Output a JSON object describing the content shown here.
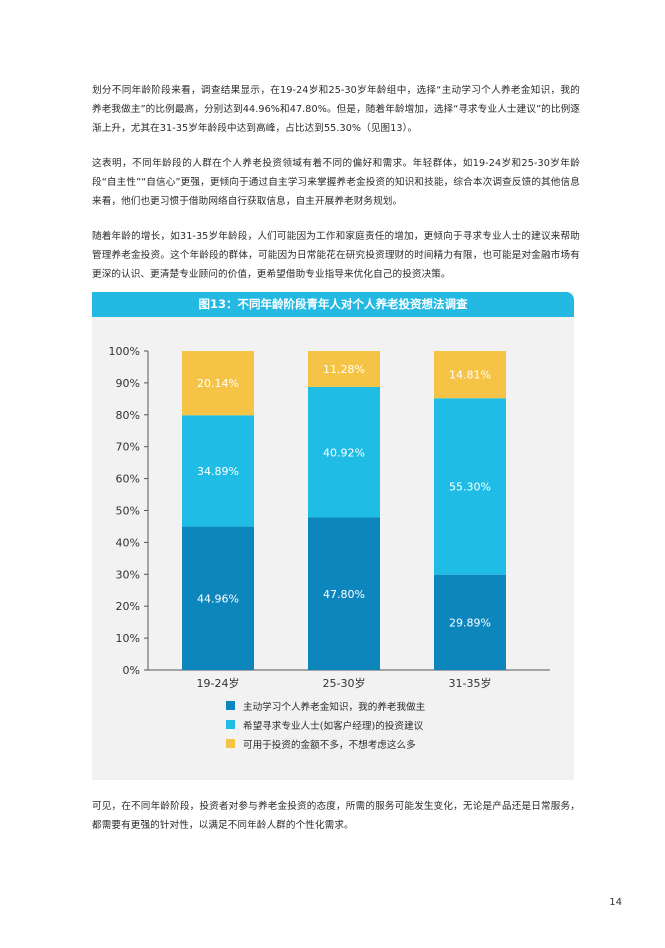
{
  "paragraphs": {
    "p1": "划分不同年龄阶段来看，调查结果显示，在19-24岁和25-30岁年龄组中，选择“主动学习个人养老金知识，我的养老我做主”的比例最高，分别达到44.96%和47.80%。但是，随着年龄增加，选择“寻求专业人士建议”的比例逐渐上升，尤其在31-35岁年龄段中达到高峰，占比达到55.30%（见图13）。",
    "p2": "这表明，不同年龄段的人群在个人养老投资领域有着不同的偏好和需求。年轻群体，如19-24岁和25-30岁年龄段“自主性”“自信心”更强，更倾向于通过自主学习来掌握养老金投资的知识和技能，综合本次调查反馈的其他信息来看，他们也更习惯于借助网络自行获取信息，自主开展养老财务规划。",
    "p3": "随着年龄的增长，如31-35岁年龄段，人们可能因为工作和家庭责任的增加，更倾向于寻求专业人士的建议来帮助管理养老金投资。这个年龄段的群体，可能因为日常能花在研究投资理财的时间精力有限，也可能是对金融市场有更深的认识、更清楚专业顾问的价值，更希望借助专业指导来优化自己的投资决策。",
    "p4": "可见，在不同年龄阶段，投资者对参与养老金投资的态度，所需的服务可能发生变化，无论是产品还是日常服务，都需要有更强的针对性，以满足不同年龄人群的个性化需求。"
  },
  "page_number": "14",
  "chart_data": {
    "type": "bar",
    "stacked": true,
    "title": "图13：不同年龄阶段青年人对个人养老投资想法调查",
    "categories": [
      "19-24岁",
      "25-30岁",
      "31-35岁"
    ],
    "series": [
      {
        "name": "主动学习个人养老金知识，我的养老我做主",
        "values": [
          44.96,
          47.8,
          29.89
        ],
        "color": "#0d86bd"
      },
      {
        "name": "希望寻求专业人士(如客户经理)的投资建议",
        "values": [
          34.89,
          40.92,
          55.3
        ],
        "color": "#1fbde6"
      },
      {
        "name": "可用于投资的金额不多，不想考虑这么多",
        "values": [
          20.14,
          11.28,
          14.81
        ],
        "color": "#f5c446"
      }
    ],
    "value_labels": [
      [
        "44.96%",
        "47.80%",
        "29.89%"
      ],
      [
        "34.89%",
        "40.92%",
        "55.30%"
      ],
      [
        "20.14%",
        "11.28%",
        "14.81%"
      ]
    ],
    "y_ticks": [
      "0%",
      "10%",
      "20%",
      "30%",
      "40%",
      "50%",
      "60%",
      "70%",
      "80%",
      "90%",
      "100%"
    ],
    "ylim": [
      0,
      100
    ],
    "grid": false,
    "legend_position": "bottom"
  }
}
